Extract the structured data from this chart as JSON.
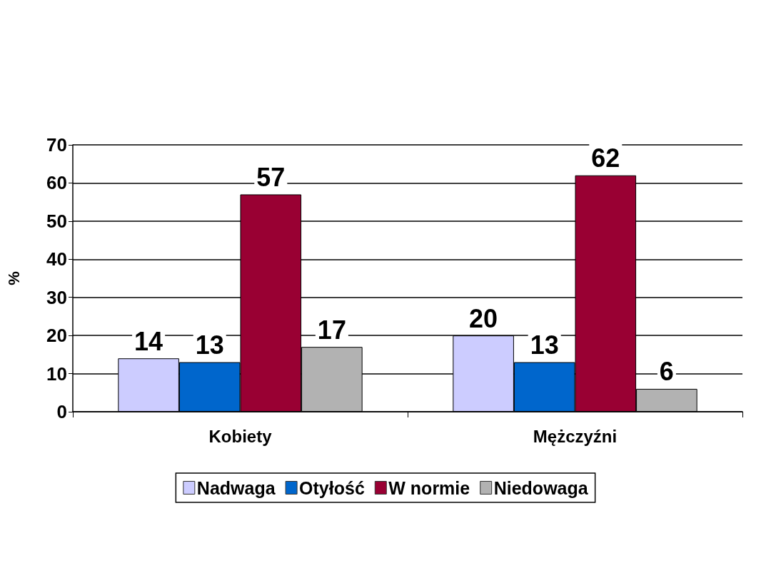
{
  "chart_data": {
    "type": "bar",
    "ylabel": "%",
    "categories": [
      "Kobiety",
      "Mężczyźni"
    ],
    "series": [
      {
        "name": "Nadwaga",
        "color": "#ccccff",
        "values": [
          14,
          20
        ]
      },
      {
        "name": "Otyłość",
        "color": "#0066cc",
        "values": [
          13,
          13
        ]
      },
      {
        "name": "W normie",
        "color": "#990033",
        "values": [
          57,
          62
        ]
      },
      {
        "name": "Niedowaga",
        "color": "#b2b2b2",
        "values": [
          17,
          6
        ]
      }
    ],
    "ylim": [
      0,
      70
    ],
    "yticks": [
      0,
      10,
      20,
      30,
      40,
      50,
      60,
      70
    ],
    "grid": "y",
    "legend": "bottom",
    "data_labels": true
  }
}
